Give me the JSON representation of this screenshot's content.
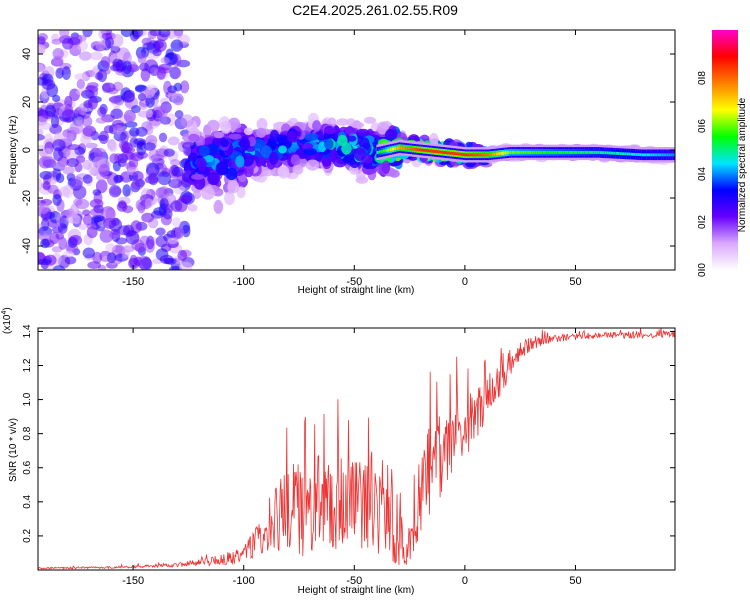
{
  "title": "C2E4.2025.261.02.55.R09",
  "chart_data": [
    {
      "type": "heatmap",
      "title": "C2E4.2025.261.02.55.R09",
      "xlabel": "Height of straight line (km)",
      "ylabel": "Frequency (Hz)",
      "xlim": [
        -193,
        95
      ],
      "ylim": [
        -50,
        50
      ],
      "x_ticks": [
        -150,
        -100,
        -50,
        0,
        50
      ],
      "y_ticks": [
        -40,
        -20,
        0,
        20,
        40
      ],
      "x_tick_labels": [
        "-150",
        "-100",
        "-50",
        "0",
        "50"
      ],
      "y_tick_labels": [
        "-40",
        "-20",
        "0",
        "20",
        "40"
      ],
      "colorbar": {
        "label": "Normalized spectral amplitude",
        "range": [
          0,
          1
        ],
        "ticks": [
          0.0,
          0.2,
          0.4,
          0.6,
          0.8
        ],
        "tick_labels": [
          "0.0",
          "0.2",
          "0.4",
          "0.6",
          "0.8"
        ],
        "colors": [
          "#ffffff",
          "#d9a8ff",
          "#6600ff",
          "#0000ff",
          "#00e5ff",
          "#00ff00",
          "#ffff00",
          "#ff8000",
          "#ff0000",
          "#ff00cc"
        ]
      },
      "ridge": {
        "description": "dominant spectral ridge",
        "x": [
          -170,
          -150,
          -130,
          -110,
          -90,
          -70,
          -50,
          -40,
          -30,
          -20,
          -10,
          0,
          10,
          20,
          40,
          60,
          80,
          95
        ],
        "center_frequency": [
          -6,
          -5,
          -6,
          -4,
          0,
          2,
          1,
          -1,
          1,
          0,
          -1,
          -2,
          -2,
          -1,
          -1,
          -1,
          -2,
          -2
        ],
        "amplitude": [
          0.3,
          0.3,
          0.35,
          0.4,
          0.4,
          0.4,
          0.5,
          0.5,
          0.75,
          0.85,
          0.85,
          0.85,
          0.8,
          0.6,
          0.55,
          0.5,
          0.45,
          0.4
        ]
      }
    },
    {
      "type": "line",
      "xlabel": "Height of straight line (km)",
      "ylabel": "SNR (10 * v/v)",
      "y_multiplier": "(x10",
      "y_multiplier_exp": "4",
      "xlim": [
        -193,
        95
      ],
      "ylim": [
        0,
        14200
      ],
      "x_ticks": [
        -150,
        -100,
        -50,
        0,
        50
      ],
      "y_ticks": [
        2000,
        4000,
        6000,
        8000,
        10000,
        12000,
        14000
      ],
      "x_tick_labels": [
        "-150",
        "-100",
        "-50",
        "0",
        "50"
      ],
      "y_tick_labels": [
        "0.2",
        "0.4",
        "0.6",
        "0.8",
        "1.0",
        "1.2",
        "1.4"
      ],
      "series": [
        {
          "name": "SNR",
          "color": "#ee3333",
          "x": [
            -193,
            -160,
            -130,
            -115,
            -105,
            -100,
            -95,
            -90,
            -85,
            -80,
            -75,
            -70,
            -65,
            -60,
            -55,
            -50,
            -45,
            -40,
            -35,
            -30,
            -27,
            -24,
            -20,
            -15,
            -10,
            -5,
            0,
            5,
            10,
            15,
            20,
            25,
            30,
            40,
            50,
            60,
            70,
            80,
            95
          ],
          "y": [
            100,
            150,
            300,
            500,
            700,
            900,
            1500,
            2500,
            3000,
            3500,
            3600,
            3400,
            3800,
            3500,
            4000,
            3600,
            3800,
            4000,
            3400,
            3000,
            800,
            2000,
            4500,
            6000,
            7000,
            7800,
            8500,
            9000,
            10000,
            11000,
            12000,
            12800,
            13300,
            13600,
            13700,
            13750,
            13800,
            13800,
            13850
          ],
          "noise": [
            50,
            60,
            120,
            250,
            400,
            500,
            900,
            1400,
            2000,
            2600,
            2800,
            3000,
            3000,
            2800,
            3200,
            2800,
            2800,
            3200,
            3000,
            2800,
            600,
            1500,
            2500,
            2800,
            2600,
            2200,
            2000,
            1800,
            1600,
            1200,
            900,
            600,
            400,
            250,
            200,
            200,
            200,
            200,
            200
          ]
        }
      ]
    }
  ]
}
